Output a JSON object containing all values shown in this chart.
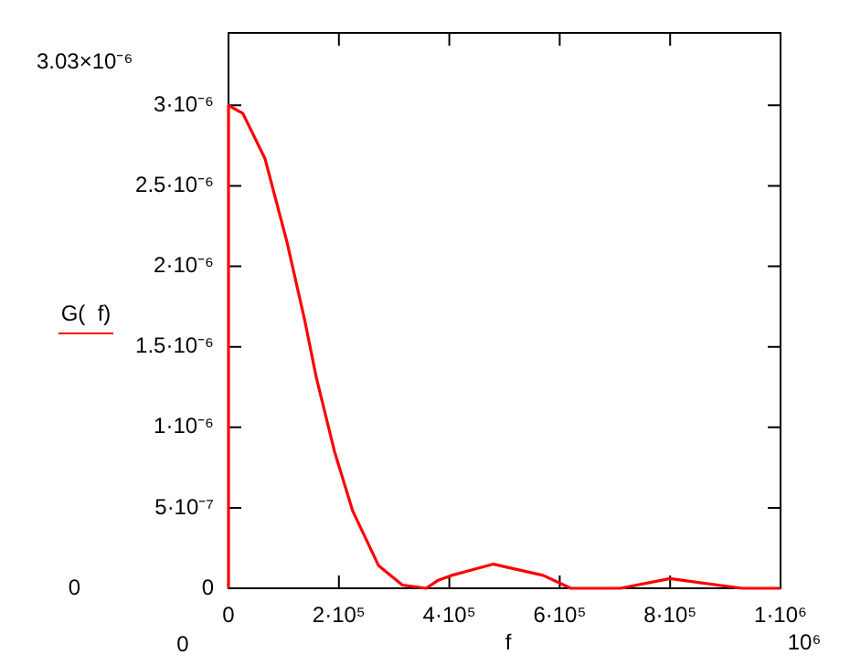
{
  "chart_data": {
    "type": "line",
    "xlabel": "f",
    "ylabel": "G(  f)",
    "xlim": [
      0,
      1000000
    ],
    "ylim": [
      0,
      3.45e-06
    ],
    "xticks": [
      0,
      {
        "value": 200000,
        "label": "2·10⁵"
      },
      {
        "value": 400000,
        "label": "4·10⁵"
      },
      {
        "value": 600000,
        "label": "6·10⁵"
      },
      {
        "value": 800000,
        "label": "8·10⁵"
      },
      {
        "value": 1000000,
        "label": "1·10⁶"
      }
    ],
    "yticks": [
      0,
      {
        "value": 5e-07,
        "label": "5·10⁻⁷"
      },
      {
        "value": 1e-06,
        "label": "1·10⁻⁶"
      },
      {
        "value": 1.5e-06,
        "label": "1.5·10⁻⁶"
      },
      {
        "value": 2e-06,
        "label": "2·10⁻⁶"
      },
      {
        "value": 2.5e-06,
        "label": "2.5·10⁻⁶"
      },
      {
        "value": 3e-06,
        "label": "3·10⁻⁶"
      }
    ],
    "annotations": [
      "3.03×10⁻⁶",
      "0",
      "0",
      "10⁶"
    ],
    "marker": "none",
    "line_style": "solid",
    "grid": false,
    "legend": false,
    "series": [
      {
        "color": "#ff0000",
        "x": [
          0,
          0,
          26000,
          66000,
          106000,
          139000,
          159000,
          192000,
          225000,
          272000,
          315000,
          358000,
          380000,
          404000,
          480000,
          570000,
          620000,
          710000,
          800000,
          930000,
          1000000
        ],
        "values": [
          0,
          3e-06,
          2.95e-06,
          2.67e-06,
          2.15e-06,
          1.65e-06,
          1.31e-06,
          8.5e-07,
          4.8e-07,
          1.4e-07,
          2e-08,
          0,
          5e-08,
          8e-08,
          1.5e-07,
          8e-08,
          0,
          0,
          6e-08,
          0,
          0
        ]
      }
    ]
  }
}
